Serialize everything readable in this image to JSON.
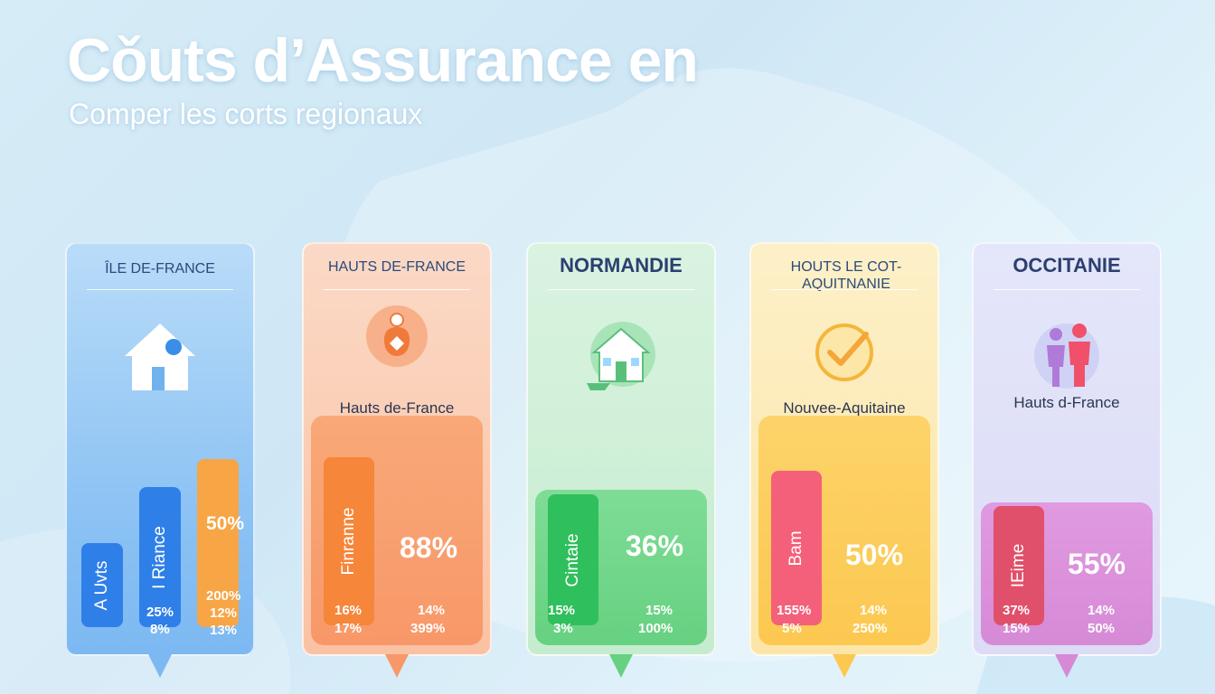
{
  "header": {
    "title": "Cǒuts d’Assurance en",
    "subtitle": "Comper les corts regionaux"
  },
  "chart_data": {
    "type": "bar",
    "title": "Cǒuts d’Assurance en",
    "subtitle": "Comper les corts regionaux",
    "panels": [
      {
        "region": "ÎLE DE-FRANCE",
        "sublabel": "",
        "icon": "house-icon",
        "color": "#5aa8f0",
        "bars": [
          {
            "label": "A Uvts",
            "value": 15
          },
          {
            "label": "I Riance",
            "value": 25
          },
          {
            "label": "",
            "value": 30
          }
        ],
        "big_pct": "50%",
        "small_pcts": [
          [
            "25%",
            "8%"
          ],
          [
            "200%",
            "12%",
            "13%"
          ]
        ]
      },
      {
        "region": "HAUTS DE-FRANCE",
        "sublabel": "Hauts de-France",
        "icon": "money-bag-icon",
        "color": "#f99a6a",
        "bars": [
          {
            "label": "Finranne",
            "value": 30
          }
        ],
        "big_pct": "88%",
        "small_pcts": [
          [
            "16%",
            "17%"
          ],
          [
            "14%",
            "399%"
          ]
        ]
      },
      {
        "region": "NORMANDIE",
        "sublabel": "",
        "icon": "house-icon",
        "color": "#6fd68a",
        "bars": [
          {
            "label": "Cintaie",
            "value": 25
          }
        ],
        "big_pct": "36%",
        "small_pcts": [
          [
            "15%",
            "3%"
          ],
          [
            "15%",
            "100%"
          ]
        ]
      },
      {
        "region": "HOUTS LE COT- AQUITNANIE",
        "sublabel": "Nouvee-Aquitaine",
        "icon": "checkmark-icon",
        "color": "#fcc85a",
        "bars": [
          {
            "label": "Bam",
            "value": 28
          }
        ],
        "big_pct": "50%",
        "small_pcts": [
          [
            "155%",
            "5%"
          ],
          [
            "14%",
            "250%"
          ]
        ]
      },
      {
        "region": "OCCITANIE",
        "sublabel": "Hauts d-France",
        "icon": "people-icon",
        "color": "#d68ad6",
        "bars": [
          {
            "label": "IEime",
            "value": 22
          }
        ],
        "big_pct": "55%",
        "small_pcts": [
          [
            "37%",
            "15%"
          ],
          [
            "14%",
            "50%"
          ]
        ]
      }
    ]
  }
}
